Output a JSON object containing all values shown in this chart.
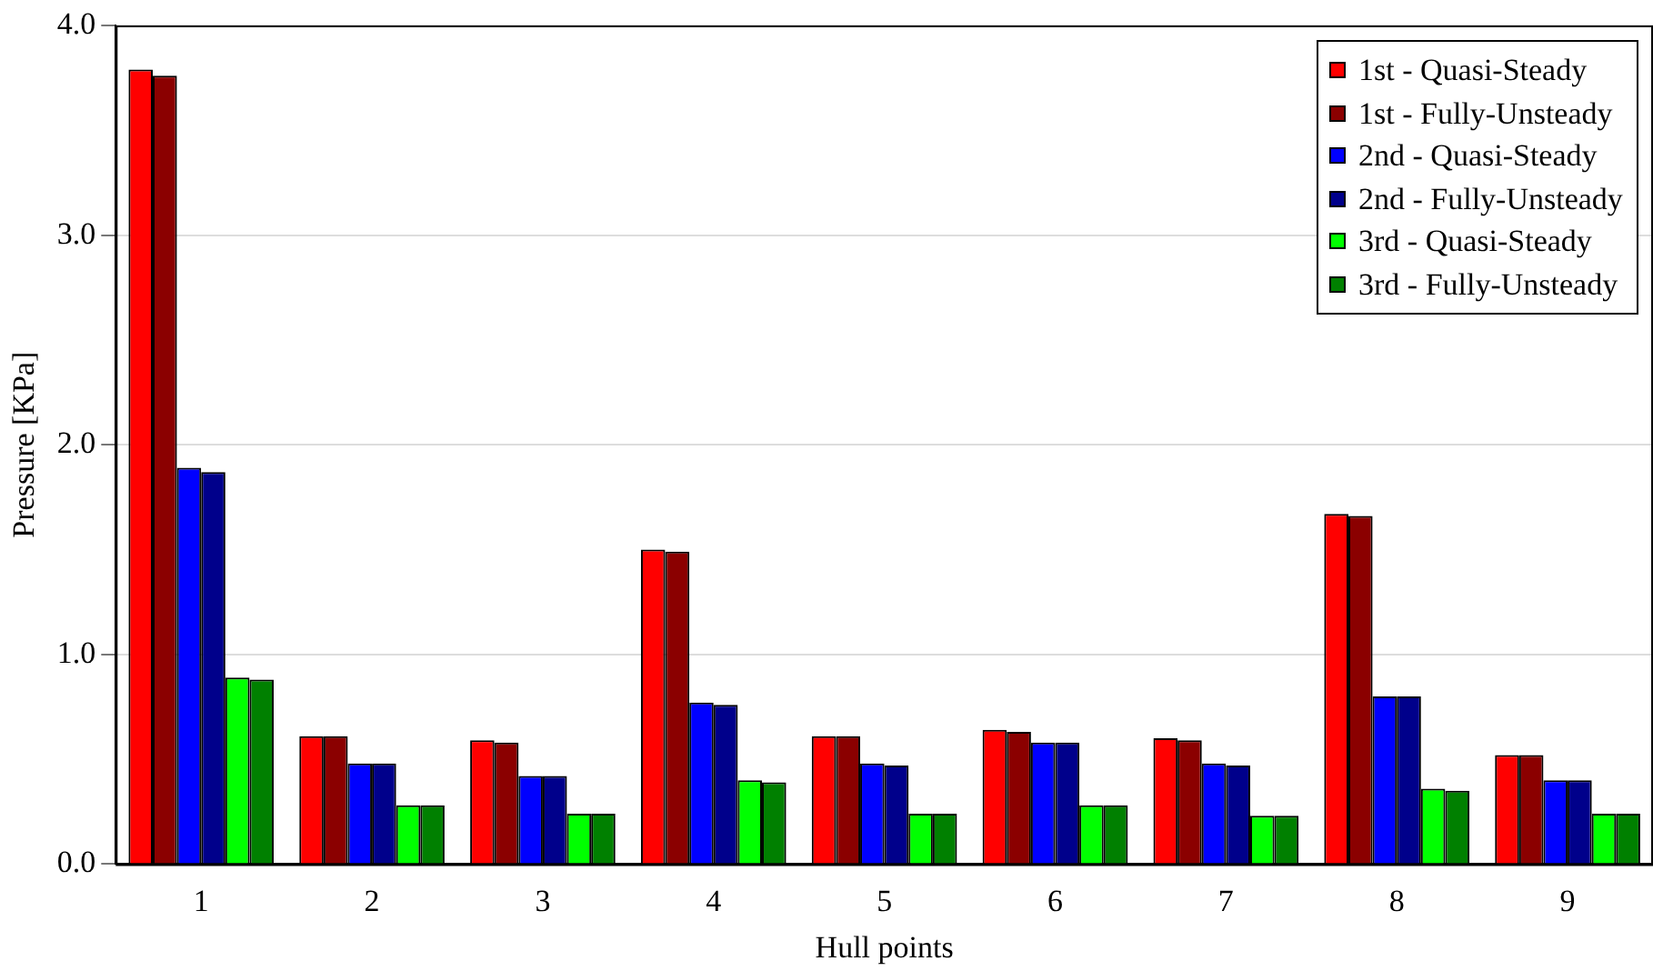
{
  "chart_data": {
    "type": "bar",
    "xlabel": "Hull points",
    "ylabel": "Pressure [KPa]",
    "categories": [
      "1",
      "2",
      "3",
      "4",
      "5",
      "6",
      "7",
      "8",
      "9"
    ],
    "series": [
      {
        "name": "1st - Quasi-Steady",
        "color": "#ff0000",
        "values": [
          3.79,
          0.61,
          0.59,
          1.5,
          0.61,
          0.64,
          0.6,
          1.67,
          0.52
        ]
      },
      {
        "name": "1st - Fully-Unsteady",
        "color": "#8b0000",
        "values": [
          3.76,
          0.61,
          0.58,
          1.49,
          0.61,
          0.63,
          0.59,
          1.66,
          0.52
        ]
      },
      {
        "name": "2nd - Quasi-Steady",
        "color": "#0000ff",
        "values": [
          1.89,
          0.48,
          0.42,
          0.77,
          0.48,
          0.58,
          0.48,
          0.8,
          0.4
        ]
      },
      {
        "name": "2nd - Fully-Unsteady",
        "color": "#00008b",
        "values": [
          1.87,
          0.48,
          0.42,
          0.76,
          0.47,
          0.58,
          0.47,
          0.8,
          0.4
        ]
      },
      {
        "name": "3rd - Quasi-Steady",
        "color": "#00ff00",
        "values": [
          0.89,
          0.28,
          0.24,
          0.4,
          0.24,
          0.28,
          0.23,
          0.36,
          0.24
        ]
      },
      {
        "name": "3rd - Fully-Unsteady",
        "color": "#008000",
        "values": [
          0.88,
          0.28,
          0.24,
          0.39,
          0.24,
          0.28,
          0.23,
          0.35,
          0.24
        ]
      }
    ],
    "ylim": [
      0,
      4
    ],
    "yticks": [
      {
        "value": 0,
        "label": "0.0"
      },
      {
        "value": 1,
        "label": "1.0"
      },
      {
        "value": 2,
        "label": "2.0"
      },
      {
        "value": 3,
        "label": "3.0"
      },
      {
        "value": 4,
        "label": "4.0"
      }
    ],
    "grid": "y",
    "legend": "top right"
  }
}
